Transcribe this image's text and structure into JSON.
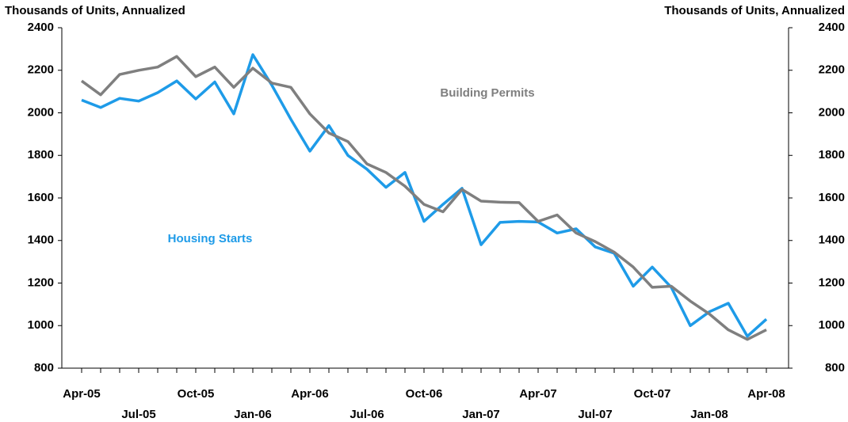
{
  "chart_data": {
    "type": "line",
    "y_label": "Thousands of Units, Annualized",
    "y2_label": "Thousands of Units, Annualized",
    "categories": [
      "Apr-05",
      null,
      null,
      "Jul-05",
      null,
      null,
      "Oct-05",
      null,
      null,
      "Jan-06",
      null,
      null,
      "Apr-06",
      null,
      null,
      "Jul-06",
      null,
      null,
      "Oct-06",
      null,
      null,
      "Jan-07",
      null,
      null,
      "Apr-07",
      null,
      null,
      "Jul-07",
      null,
      null,
      "Oct-07",
      null,
      null,
      "Jan-08",
      null,
      null,
      "Apr-08"
    ],
    "series": [
      {
        "name": "Housing Starts",
        "color": "#1e9be8",
        "values": [
          2060,
          2025,
          2068,
          2055,
          2095,
          2150,
          2065,
          2145,
          1995,
          2273,
          2130,
          1970,
          1820,
          1940,
          1800,
          1735,
          1650,
          1720,
          1490,
          1570,
          1645,
          1380,
          1485,
          1490,
          1487,
          1435,
          1455,
          1370,
          1340,
          1185,
          1275,
          1180,
          1000,
          1065,
          1105,
          950,
          1030
        ]
      },
      {
        "name": "Building Permits",
        "color": "#7f7f7f",
        "axis": "y2",
        "values": [
          2150,
          2085,
          2180,
          2200,
          2215,
          2265,
          2170,
          2215,
          2120,
          2210,
          2140,
          2120,
          1995,
          1905,
          1865,
          1760,
          1720,
          1655,
          1570,
          1535,
          1640,
          1585,
          1580,
          1578,
          1490,
          1520,
          1435,
          1395,
          1345,
          1275,
          1180,
          1185,
          1115,
          1055,
          980,
          935,
          980
        ]
      }
    ],
    "ylim": [
      800,
      2400
    ],
    "yticks": [
      800,
      1000,
      1200,
      1400,
      1600,
      1800,
      2000,
      2200,
      2400
    ],
    "y2lim": [
      800,
      2400
    ],
    "y2ticks": [
      800,
      1000,
      1200,
      1400,
      1600,
      1800,
      2000,
      2200,
      2400
    ],
    "grid": false
  }
}
